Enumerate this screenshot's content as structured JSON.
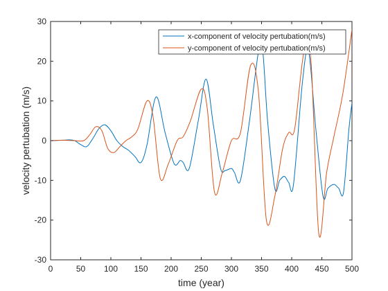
{
  "chart_data": {
    "type": "line",
    "xlabel": "time (year)",
    "ylabel": "velocity pertubation (m/s)",
    "xlim": [
      0,
      500
    ],
    "ylim": [
      -30,
      30
    ],
    "xticks": [
      "0",
      "50",
      "100",
      "150",
      "200",
      "250",
      "300",
      "350",
      "400",
      "450",
      "500"
    ],
    "yticks": [
      "30",
      "20",
      "10",
      "0",
      "-10",
      "-20",
      "-30"
    ],
    "grid": false,
    "legend_position": "top-right",
    "series": [
      {
        "name": "x-component of velocity pertubation(m/s)",
        "color": "#0072BD",
        "x": [
          0,
          20,
          30,
          40,
          50,
          60,
          70,
          80,
          90,
          100,
          110,
          120,
          130,
          140,
          150,
          160,
          175,
          190,
          205,
          215,
          220,
          230,
          245,
          258,
          270,
          282,
          290,
          300,
          305,
          315,
          330,
          345,
          352,
          360,
          372,
          380,
          388,
          395,
          403,
          418,
          428,
          440,
          452,
          460,
          470,
          478,
          486,
          495,
          500
        ],
        "y": [
          0,
          0.1,
          0.2,
          0,
          -1.0,
          -1.5,
          0.5,
          3.0,
          4.0,
          2.5,
          0,
          -1.5,
          -2.5,
          -4.0,
          -5.5,
          -1.0,
          11.0,
          2.0,
          -5.8,
          -5.0,
          -5.5,
          -7.0,
          5.0,
          15.5,
          4.0,
          -7.0,
          -7.5,
          -7.0,
          -8.0,
          -10.0,
          5.0,
          22.5,
          22.5,
          5.0,
          -12.0,
          -10.0,
          -9.0,
          -10.5,
          -11.0,
          15.0,
          22.5,
          3.0,
          -14.0,
          -12.0,
          -11.0,
          -12.0,
          -13.0,
          3.0,
          9.5
        ]
      },
      {
        "name": "y-component of velocity pertubation(m/s)",
        "color": "#D95319",
        "x": [
          0,
          20,
          40,
          55,
          65,
          75,
          85,
          95,
          105,
          115,
          125,
          135,
          145,
          160,
          170,
          182,
          195,
          210,
          220,
          232,
          250,
          260,
          272,
          285,
          300,
          315,
          332,
          345,
          358,
          372,
          385,
          395,
          405,
          420,
          432,
          445,
          458,
          470,
          485,
          500
        ],
        "y": [
          0,
          0.1,
          0,
          0,
          1.5,
          3.5,
          2.5,
          -2.0,
          -3.0,
          -1.5,
          0,
          1.0,
          3.0,
          10.0,
          6.0,
          -9.5,
          -6.0,
          0,
          1.0,
          5.0,
          13.0,
          8.0,
          -13.0,
          -8.0,
          0,
          2.0,
          19.0,
          12.0,
          -20.0,
          -14.0,
          -2.0,
          2.0,
          3.0,
          22.0,
          20.0,
          -23.5,
          -8.0,
          1.0,
          12.0,
          28.0
        ]
      }
    ]
  }
}
